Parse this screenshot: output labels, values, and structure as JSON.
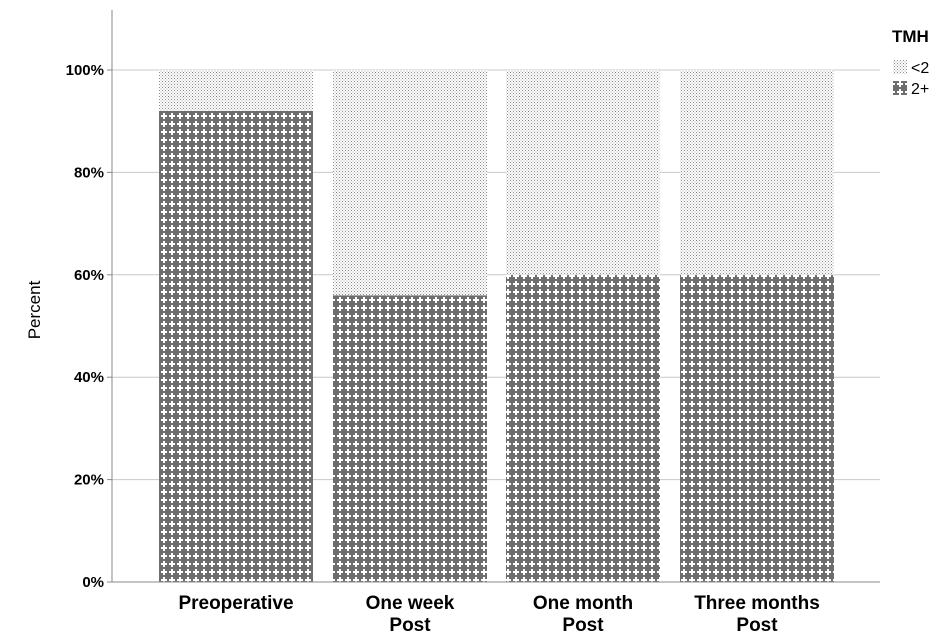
{
  "chart_data": {
    "type": "bar",
    "stacked": true,
    "categories": [
      [
        "Preoperative"
      ],
      [
        "One week",
        "Post"
      ],
      [
        "One month",
        "Post"
      ],
      [
        "Three months",
        "Post"
      ]
    ],
    "series": [
      {
        "name": "2+",
        "values": [
          92,
          56,
          60,
          60
        ],
        "pattern": "cross"
      },
      {
        "name": "<2",
        "values": [
          8,
          44,
          40,
          40
        ],
        "pattern": "dots"
      }
    ],
    "ylabel": "Percent",
    "ylim": [
      0,
      100
    ],
    "yticks": [
      "0%",
      "20%",
      "40%",
      "60%",
      "80%",
      "100%"
    ],
    "grid": true,
    "legend": {
      "title": "TMH",
      "position": "top-right"
    },
    "colors": {
      "pattern": "#6e6e6e",
      "background": "#ffffff",
      "grid": "#c8c8c8",
      "axis": "#888888"
    }
  }
}
